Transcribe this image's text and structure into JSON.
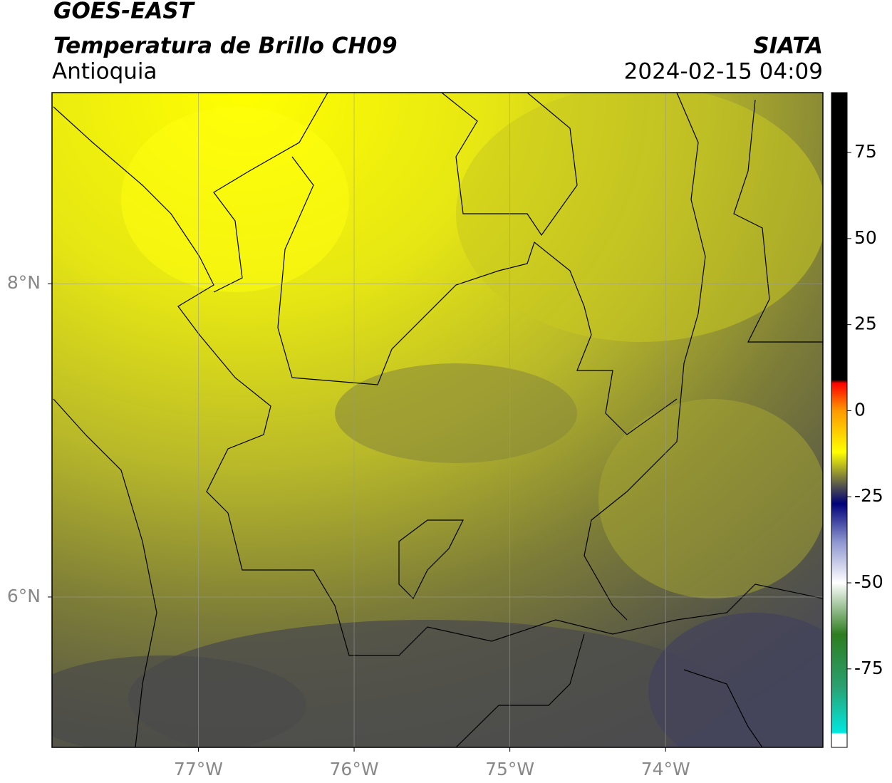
{
  "header": {
    "title": "GOES-EAST",
    "subtitle": "Temperatura de Brillo CH09",
    "region": "Antioquia",
    "source": "SIATA",
    "timestamp": "2024-02-15 04:09"
  },
  "map": {
    "xlim": [
      -77.94,
      -72.99
    ],
    "ylim": [
      5.04,
      9.22
    ],
    "xticks": [
      {
        "value": -77,
        "label": "77°W"
      },
      {
        "value": -76,
        "label": "76°W"
      },
      {
        "value": -75,
        "label": "75°W"
      },
      {
        "value": -74,
        "label": "74°W"
      }
    ],
    "yticks": [
      {
        "value": 6,
        "label": "6°N"
      },
      {
        "value": 8,
        "label": "8°N"
      }
    ],
    "grid": true
  },
  "colorbar": {
    "lim": [
      -97.8,
      92.4
    ],
    "ticks": [
      -75,
      -50,
      -25,
      0,
      25,
      50,
      75
    ],
    "stops": [
      {
        "value": -97.8,
        "color": "#ffffff"
      },
      {
        "value": -94,
        "color": "#ffffff"
      },
      {
        "value": -93.5,
        "color": "#00e8e0"
      },
      {
        "value": -80,
        "color": "#2aa070"
      },
      {
        "value": -65,
        "color": "#2e7d20"
      },
      {
        "value": -50,
        "color": "#ffffff"
      },
      {
        "value": -38,
        "color": "#8d95d0"
      },
      {
        "value": -27,
        "color": "#00007a"
      },
      {
        "value": -22,
        "color": "#505050"
      },
      {
        "value": -12,
        "color": "#ffff00"
      },
      {
        "value": 0,
        "color": "#ff9900"
      },
      {
        "value": 8,
        "color": "#ff0000"
      },
      {
        "value": 9,
        "color": "#000000"
      },
      {
        "value": 92.4,
        "color": "#000000"
      }
    ]
  }
}
